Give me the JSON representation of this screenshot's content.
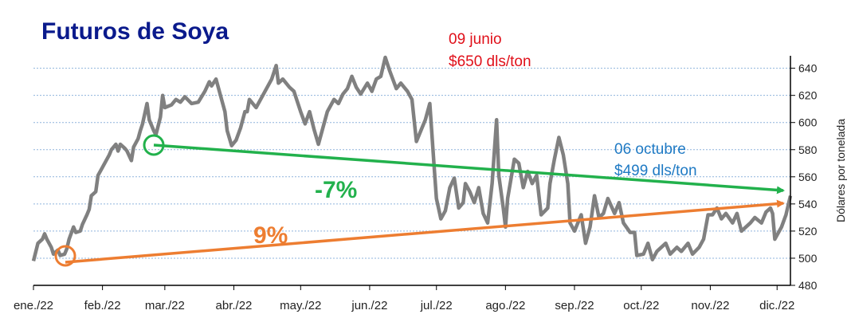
{
  "chart_data": {
    "type": "line",
    "title": "Futuros de Soya",
    "y_label": "Dólares por tonelada",
    "annotations": {
      "peak_date": "09 junio",
      "peak_price": "$650 dls/ton",
      "low_date": "06 octubre",
      "low_price": "$499 dls/ton",
      "change_from_march": "-7%",
      "change_from_january": "9%"
    },
    "grid": true,
    "xlim": [
      0,
      340
    ],
    "xticks": [
      {
        "value": 0,
        "label": "ene./22"
      },
      {
        "value": 31,
        "label": "feb./22"
      },
      {
        "value": 59,
        "label": "mar./22"
      },
      {
        "value": 90,
        "label": "abr./22"
      },
      {
        "value": 120,
        "label": "may./22"
      },
      {
        "value": 151,
        "label": "jun./22"
      },
      {
        "value": 181,
        "label": "jul./22"
      },
      {
        "value": 212,
        "label": "ago./22"
      },
      {
        "value": 243,
        "label": "sep./22"
      },
      {
        "value": 273,
        "label": "oct./22"
      },
      {
        "value": 304,
        "label": "nov./22"
      },
      {
        "value": 334,
        "label": "dic./22"
      }
    ],
    "ylim": [
      480,
      648
    ],
    "yticks": [
      480,
      500,
      520,
      540,
      560,
      580,
      600,
      620,
      640
    ],
    "x": [
      0,
      2,
      4,
      5,
      6,
      8,
      9,
      11,
      12,
      14,
      15,
      16,
      18,
      19,
      21,
      22,
      24,
      25,
      26,
      28,
      29,
      31,
      32,
      34,
      35,
      37,
      38,
      39,
      41,
      42,
      44,
      45,
      47,
      48,
      49,
      51,
      52,
      54,
      55,
      57,
      58,
      59,
      62,
      64,
      66,
      68,
      71,
      74,
      77,
      79,
      80,
      82,
      84,
      86,
      87,
      89,
      91,
      93,
      95,
      96,
      97,
      100,
      102,
      104,
      107,
      109,
      110,
      112,
      115,
      117,
      120,
      122,
      124,
      126,
      128,
      130,
      132,
      135,
      137,
      139,
      141,
      143,
      145,
      147,
      150,
      152,
      154,
      156,
      158,
      160,
      163,
      165,
      168,
      170,
      172,
      174,
      176,
      178,
      180,
      181,
      183,
      185,
      187,
      189,
      191,
      193,
      194,
      196,
      198,
      200,
      202,
      204,
      206,
      208,
      209,
      211,
      212,
      213,
      216,
      218,
      220,
      222,
      224,
      226,
      228,
      231,
      232,
      234,
      236,
      238,
      240,
      241,
      243,
      246,
      248,
      250,
      252,
      254,
      256,
      258,
      261,
      263,
      265,
      268,
      270,
      271,
      274,
      276,
      278,
      280,
      282,
      284,
      286,
      289,
      291,
      294,
      296,
      299,
      301,
      303,
      305,
      307,
      309,
      311,
      314,
      316,
      318,
      320,
      322,
      324,
      327,
      329,
      331,
      332,
      333,
      336,
      338,
      340
    ],
    "series": [
      {
        "color": "#808080",
        "values": [
          498,
          511,
          514,
          518,
          514,
          508,
          503,
          506,
          502,
          503,
          507,
          514,
          523,
          519,
          520,
          525,
          532,
          536,
          546,
          549,
          561,
          567,
          570,
          576,
          580,
          584,
          579,
          584,
          581,
          579,
          572,
          582,
          588,
          594,
          599,
          614,
          602,
          594,
          591,
          604,
          620,
          611,
          613,
          617,
          615,
          619,
          614,
          615,
          623,
          630,
          627,
          632,
          620,
          608,
          594,
          583,
          587,
          596,
          608,
          608,
          617,
          611,
          617,
          623,
          632,
          642,
          629,
          632,
          626,
          623,
          608,
          599,
          608,
          595,
          584,
          596,
          608,
          617,
          614,
          621,
          625,
          634,
          626,
          621,
          629,
          623,
          632,
          634,
          648,
          638,
          625,
          629,
          623,
          617,
          586,
          594,
          602,
          614,
          567,
          544,
          529,
          535,
          552,
          559,
          537,
          541,
          555,
          549,
          541,
          552,
          533,
          526,
          555,
          602,
          561,
          537,
          523,
          544,
          573,
          570,
          552,
          564,
          555,
          561,
          532,
          537,
          555,
          573,
          589,
          576,
          555,
          526,
          520,
          532,
          511,
          523,
          546,
          530,
          533,
          544,
          533,
          541,
          526,
          519,
          519,
          502,
          503,
          511,
          499,
          505,
          508,
          511,
          503,
          508,
          505,
          511,
          503,
          508,
          514,
          532,
          532,
          537,
          529,
          533,
          526,
          533,
          520,
          523,
          526,
          530,
          526,
          534,
          537,
          533,
          514,
          523,
          532,
          546
        ]
      }
    ]
  }
}
